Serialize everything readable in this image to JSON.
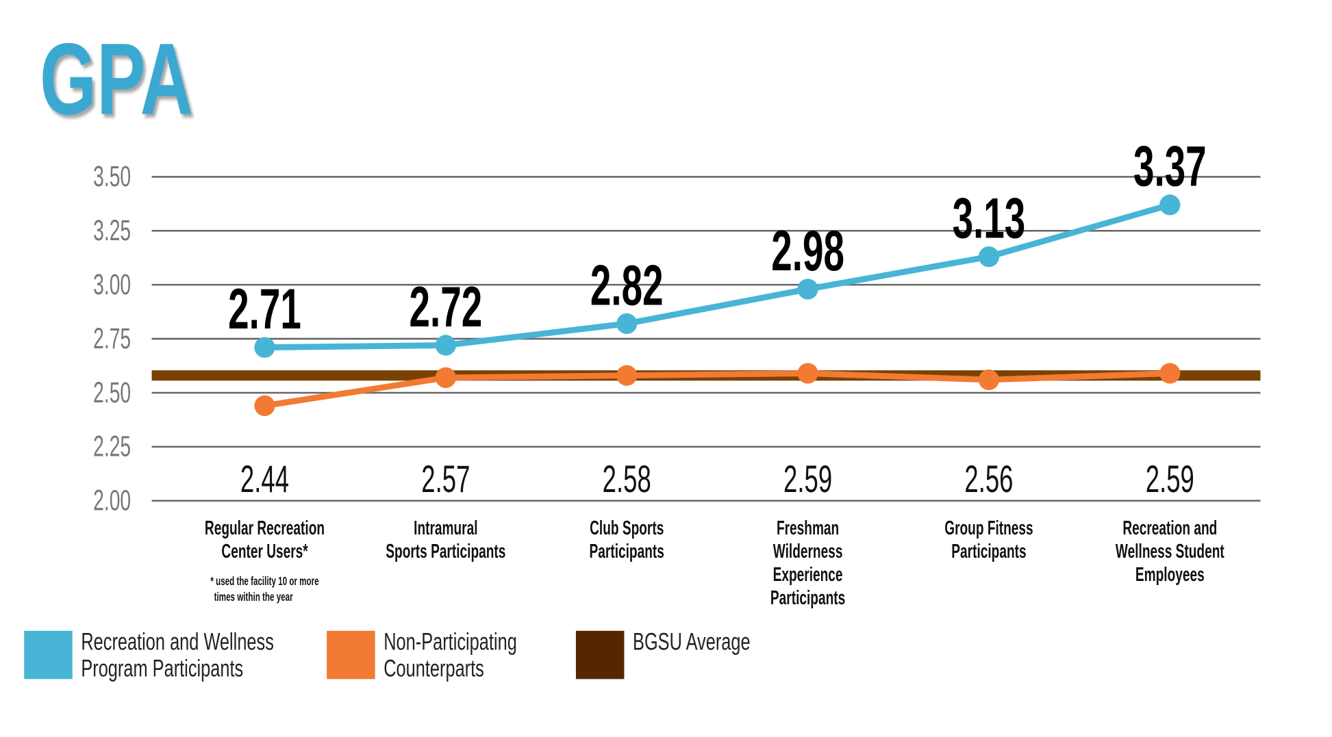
{
  "title": "GPA",
  "colors": {
    "participants": "#48b4d6",
    "counterparts": "#f27a33",
    "bgsu_band": "#7a4200",
    "bgsu_legend": "#552700",
    "title": "#3aa8d2",
    "grid": "#666666"
  },
  "chart_data": {
    "type": "line",
    "title": "GPA",
    "categories": [
      [
        "Regular Recreation",
        "Center Users*"
      ],
      [
        "Intramural",
        "Sports Participants"
      ],
      [
        "Club Sports",
        "Participants"
      ],
      [
        "Freshman",
        "Wilderness",
        "Experience",
        "Participants"
      ],
      [
        "Group Fitness",
        "Participants"
      ],
      [
        "Recreation and",
        "Wellness Student",
        "Employees"
      ]
    ],
    "footnote": [
      "* used the facility 10 or more",
      "times within the year"
    ],
    "series": [
      {
        "name": "Recreation and Wellness Program Participants",
        "legend_lines": [
          "Recreation and Wellness",
          "Program Participants"
        ],
        "values": [
          2.71,
          2.72,
          2.82,
          2.98,
          3.13,
          3.37
        ],
        "labels": [
          "2.71",
          "2.72",
          "2.82",
          "2.98",
          "3.13",
          "3.37"
        ]
      },
      {
        "name": "Non-Participating Counterparts",
        "legend_lines": [
          "Non-Participating",
          "Counterparts"
        ],
        "values": [
          2.44,
          2.57,
          2.58,
          2.59,
          2.56,
          2.59
        ],
        "labels": [
          "2.44",
          "2.57",
          "2.58",
          "2.59",
          "2.56",
          "2.59"
        ]
      }
    ],
    "reference_line": {
      "name": "BGSU Average",
      "value": 2.58
    },
    "yticks": [
      "2.00",
      "2.25",
      "2.50",
      "2.75",
      "3.00",
      "3.25",
      "3.50"
    ],
    "ylim": [
      2.0,
      3.5
    ],
    "grid": true,
    "legend_position": "bottom-left"
  }
}
